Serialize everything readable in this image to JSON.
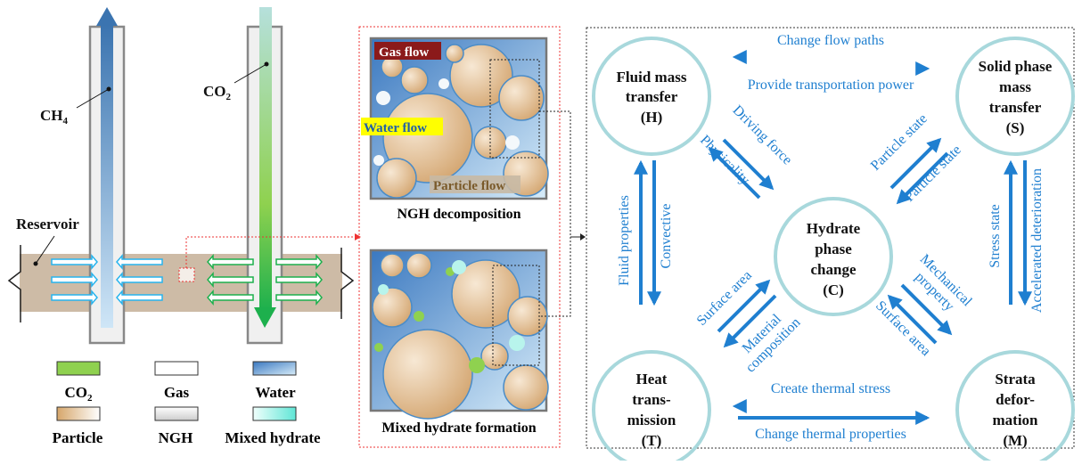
{
  "wells": {
    "ch4_label": "CH",
    "ch4_sub": "4",
    "co2_label": "CO",
    "co2_sub": "2",
    "reservoir_label": "Reservoir"
  },
  "legend": {
    "items": [
      {
        "label": "CO",
        "sub": "2",
        "color": "#8fd14f"
      },
      {
        "label": "Gas",
        "sub": "",
        "color": "#ffffff"
      },
      {
        "label": "Water",
        "sub": "",
        "color": "#3f7fc0"
      },
      {
        "label": "Particle",
        "sub": "",
        "color": "#d9b07a"
      },
      {
        "label": "NGH",
        "sub": "",
        "color": "#e0e0e0"
      },
      {
        "label": "Mixed hydrate",
        "sub": "",
        "color": "#6fe8d8"
      }
    ]
  },
  "micro": {
    "gas_flow": "Gas flow",
    "water_flow": "Water flow",
    "particle_flow": "Particle flow",
    "top_caption": "NGH decomposition",
    "bottom_caption": "Mixed hydrate formation"
  },
  "coupling": {
    "nodes": {
      "H": [
        "Fluid mass",
        "transfer",
        "(H)"
      ],
      "S": [
        "Solid phase",
        "mass",
        "transfer",
        "(S)"
      ],
      "C": [
        "Hydrate",
        "phase",
        "change",
        "(C)"
      ],
      "T": [
        "Heat",
        "trans-",
        "mission",
        "(T)"
      ],
      "M": [
        "Strata",
        "defor-",
        "mation",
        "(M)"
      ]
    },
    "relations": {
      "s_to_h": "Change flow paths",
      "h_to_s": "Provide transportation power",
      "h_to_c": "Driving force",
      "c_to_h": "Physicality",
      "c_to_s": "Particle state",
      "s_to_c": "Particle state",
      "t_to_h": "Fluid properties",
      "h_to_t": "Convective",
      "m_to_s": "Stress state",
      "s_to_m": "Accelerated deterioration",
      "t_to_c": "Surface area",
      "c_to_t_1": "Material",
      "c_to_t_2": "composition",
      "c_to_m_1": "Mechanical",
      "c_to_m_2": "property",
      "m_to_c": "Surface area",
      "m_to_t": "Create thermal stress",
      "t_to_m": "Change thermal properties"
    },
    "colors": {
      "circle": "#a8d8dc",
      "arrow": "#1f7fd0"
    }
  }
}
